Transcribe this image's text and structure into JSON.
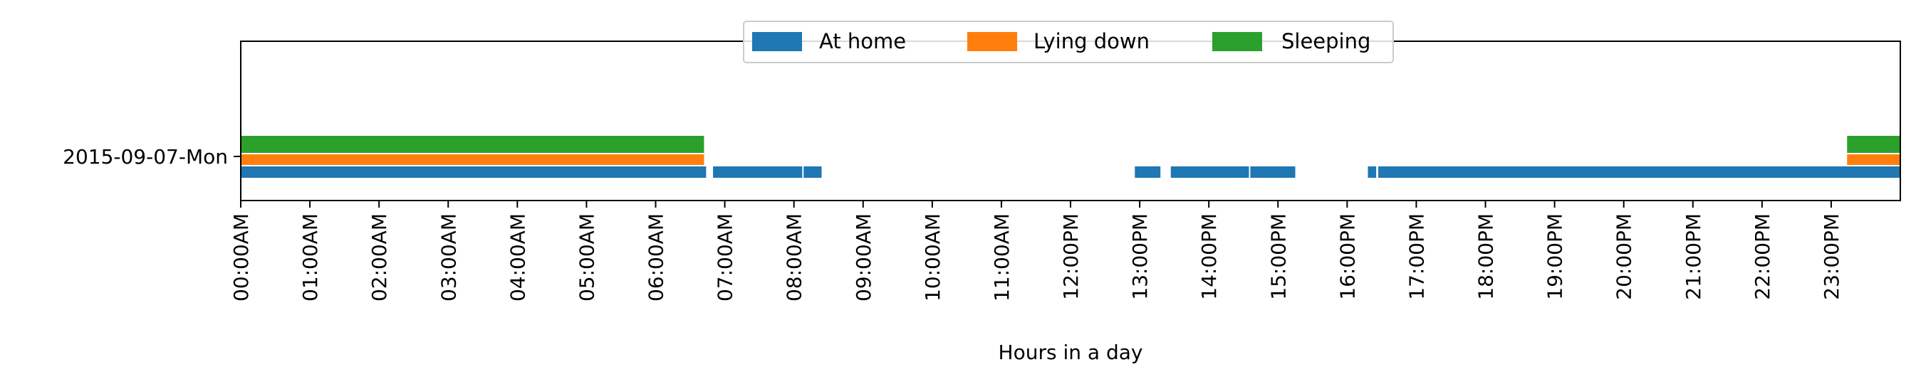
{
  "chart_data": {
    "type": "bar",
    "orientation": "horizontal-timeline",
    "title": "",
    "xlabel": "Hours in a day",
    "ylabel": "",
    "xlim": [
      0,
      24
    ],
    "x_unit": "hours",
    "grid": false,
    "legend_position": "top-center",
    "categories": [
      "2015-09-07-Mon"
    ],
    "x_tick_labels": [
      "00:00AM",
      "01:00AM",
      "02:00AM",
      "03:00AM",
      "04:00AM",
      "05:00AM",
      "06:00AM",
      "07:00AM",
      "08:00AM",
      "09:00AM",
      "10:00AM",
      "11:00AM",
      "12:00PM",
      "13:00PM",
      "14:00PM",
      "15:00PM",
      "16:00PM",
      "17:00PM",
      "18:00PM",
      "19:00PM",
      "20:00PM",
      "21:00PM",
      "22:00PM",
      "23:00PM"
    ],
    "series": [
      {
        "name": "At home",
        "color": "#1f77b4",
        "intervals": [
          [
            0.0,
            6.73
          ],
          [
            6.83,
            8.12
          ],
          [
            8.14,
            8.4
          ],
          [
            12.93,
            13.3
          ],
          [
            13.45,
            14.58
          ],
          [
            14.6,
            15.25
          ],
          [
            16.3,
            16.42
          ],
          [
            16.45,
            24.0
          ]
        ]
      },
      {
        "name": "Lying down",
        "color": "#ff7f0e",
        "intervals": [
          [
            0.0,
            6.7
          ],
          [
            23.23,
            24.0
          ]
        ]
      },
      {
        "name": "Sleeping",
        "color": "#2ca02c",
        "intervals": [
          [
            0.0,
            6.7
          ],
          [
            23.23,
            24.0
          ]
        ]
      }
    ]
  }
}
